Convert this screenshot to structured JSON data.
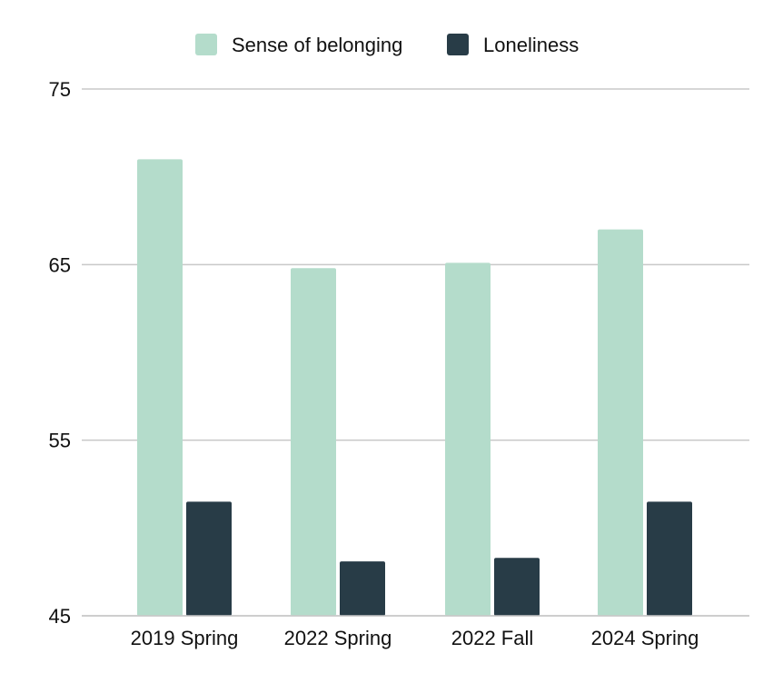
{
  "chart_data": {
    "type": "bar",
    "categories": [
      "2019 Spring",
      "2022 Spring",
      "2022 Fall",
      "2024 Spring"
    ],
    "series": [
      {
        "name": "Sense of belonging",
        "color": "#b4dccb",
        "values": [
          71,
          64.8,
          65.1,
          67
        ]
      },
      {
        "name": "Loneliness",
        "color": "#283c47",
        "values": [
          51.5,
          48.1,
          48.3,
          51.5
        ]
      }
    ],
    "ylim": [
      45,
      75
    ],
    "yticks": [
      45,
      55,
      65,
      75
    ],
    "grid": true,
    "legend_position": "top-center"
  }
}
